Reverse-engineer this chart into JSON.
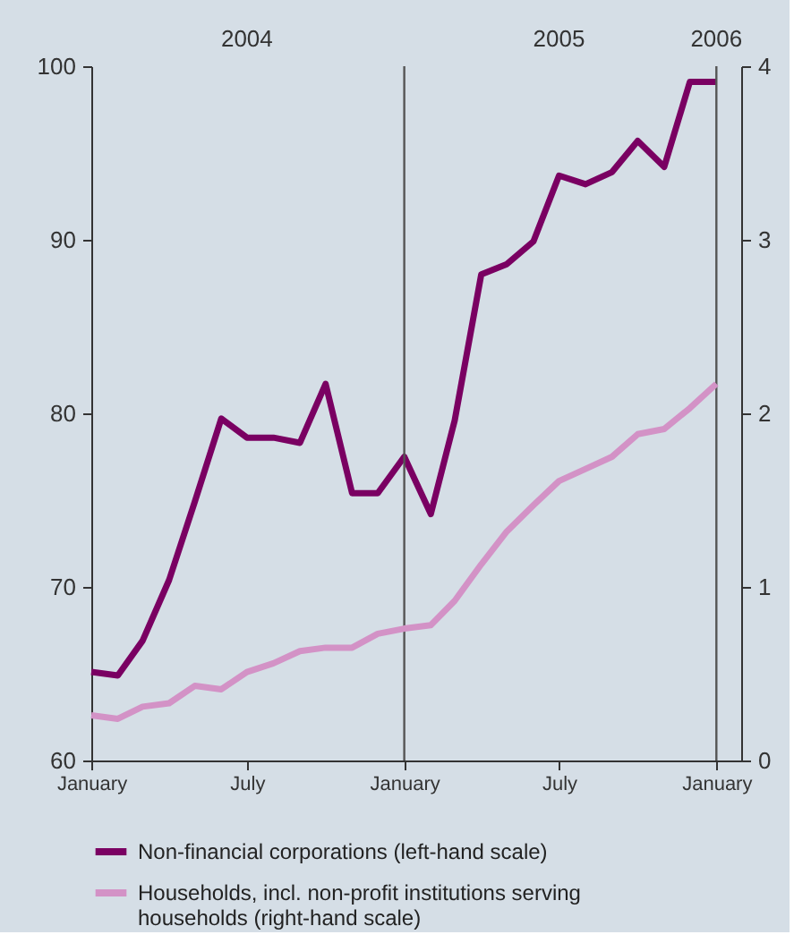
{
  "chart_data": {
    "type": "line",
    "x": [
      "2004-01",
      "2004-02",
      "2004-03",
      "2004-04",
      "2004-05",
      "2004-06",
      "2004-07",
      "2004-08",
      "2004-09",
      "2004-10",
      "2004-11",
      "2004-12",
      "2005-01",
      "2005-02",
      "2005-03",
      "2005-04",
      "2005-05",
      "2005-06",
      "2005-07",
      "2005-08",
      "2005-09",
      "2005-10",
      "2005-11",
      "2005-12",
      "2006-01"
    ],
    "series": [
      {
        "name": "Non-financial corporations (left-hand scale)",
        "color": "#7a0062",
        "values": [
          65.1,
          64.9,
          66.9,
          70.4,
          74.9,
          79.7,
          78.6,
          78.6,
          78.3,
          81.7,
          75.4,
          75.4,
          77.5,
          74.2,
          79.6,
          88.0,
          88.6,
          89.9,
          93.7,
          93.2,
          93.9,
          95.7,
          94.2,
          99.1,
          99.1
        ]
      },
      {
        "name": "Households, incl. non-profit institutions serving households (right-hand scale)",
        "color": "#d392c6",
        "axis": "y2",
        "values": [
          0.26,
          0.24,
          0.31,
          0.33,
          0.43,
          0.41,
          0.51,
          0.56,
          0.63,
          0.65,
          0.65,
          0.73,
          0.76,
          0.78,
          0.92,
          1.13,
          1.32,
          1.47,
          1.61,
          1.68,
          1.75,
          1.88,
          1.91,
          2.03,
          2.17
        ]
      }
    ],
    "xlim": [
      "2004-01-01",
      "2006-01-30"
    ],
    "xticks": [
      {
        "value": "2004-01-01",
        "label": "January"
      },
      {
        "value": "2004-07-01",
        "label": "July"
      },
      {
        "value": "2005-01-01",
        "label": "January"
      },
      {
        "value": "2005-07-01",
        "label": "July"
      },
      {
        "value": "2006-01-01",
        "label": "January"
      }
    ],
    "x2lim": [
      "2004-01-01",
      "2006-01-30"
    ],
    "x2ticks": [
      {
        "value": "2004-07-01",
        "label": "2004"
      },
      {
        "value": "2005-07-01",
        "label": "2005"
      },
      {
        "value": "2006-01-01",
        "label": "2006"
      }
    ],
    "ylim": [
      60,
      100
    ],
    "yticks": [
      60,
      70,
      80,
      90,
      100
    ],
    "y2lim": [
      0,
      4
    ],
    "y2ticks": [
      0,
      1,
      2,
      3,
      4
    ],
    "ref_lines": [
      {
        "axis": "x",
        "value": "2005-01-01",
        "label": null,
        "color": "#555555"
      },
      {
        "axis": "x",
        "value": "2006-01-01",
        "label": null,
        "color": "#555555"
      }
    ],
    "grid": false,
    "legend": "bottom",
    "marker": "none",
    "line_style": "solid"
  }
}
